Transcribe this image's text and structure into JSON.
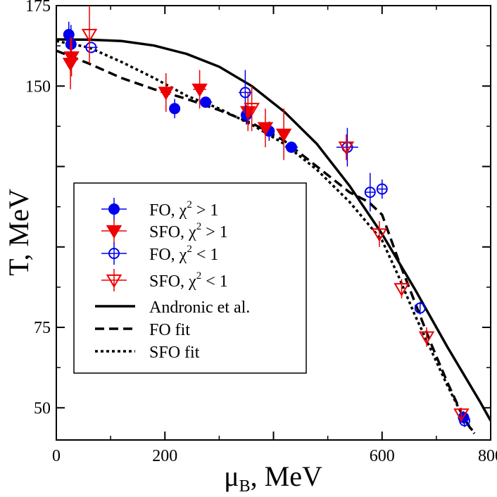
{
  "chart_data": {
    "type": "scatter",
    "xlabel": "μB, MeV",
    "xlabel_main": "μ",
    "xlabel_sub": "B",
    "xlabel_rest": ", MeV",
    "ylabel": "T, MeV",
    "xlim": [
      0,
      800
    ],
    "ylim": [
      40,
      175
    ],
    "x_ticks": [
      0,
      200,
      400,
      600,
      800
    ],
    "x_tick_labels": [
      "0",
      "200",
      "",
      "600",
      "800"
    ],
    "y_ticks": [
      50,
      75,
      100,
      125,
      150,
      175
    ],
    "y_tick_labels": [
      "50",
      "75",
      "",
      "",
      "150",
      "175"
    ],
    "legend_position": "center-left",
    "series": [
      {
        "name": "FO, χ² > 1",
        "legend_main": "FO,   χ",
        "legend_sup": "2",
        "legend_rest": " > 1",
        "marker": "filled-circle",
        "color": "#0000ee",
        "points": [
          {
            "x": 23,
            "y": 166,
            "ex": 0,
            "ey": 4
          },
          {
            "x": 27,
            "y": 163,
            "ex": 0,
            "ey": 6
          },
          {
            "x": 218,
            "y": 143,
            "ex": 10,
            "ey": 3
          },
          {
            "x": 275,
            "y": 145,
            "ex": 12,
            "ey": 0
          },
          {
            "x": 350,
            "y": 141,
            "ex": 0,
            "ey": 3
          },
          {
            "x": 392,
            "y": 136,
            "ex": 0,
            "ey": 3
          },
          {
            "x": 433,
            "y": 131,
            "ex": 12,
            "ey": 0
          },
          {
            "x": 750,
            "y": 47,
            "ex": 0,
            "ey": 2
          }
        ]
      },
      {
        "name": "SFO, χ² > 1",
        "legend_main": "SFO, χ",
        "legend_sup": "2",
        "legend_rest": " > 1",
        "marker": "filled-triangle-down",
        "color": "#ee0000",
        "points": [
          {
            "x": 28,
            "y": 159,
            "ex": 0,
            "ey": 6
          },
          {
            "x": 26,
            "y": 157,
            "ex": 0,
            "ey": 8
          },
          {
            "x": 202,
            "y": 148,
            "ex": 10,
            "ey": 6
          },
          {
            "x": 264,
            "y": 149,
            "ex": 12,
            "ey": 6
          },
          {
            "x": 353,
            "y": 142,
            "ex": 0,
            "ey": 6
          },
          {
            "x": 385,
            "y": 137,
            "ex": 0,
            "ey": 6
          },
          {
            "x": 419,
            "y": 135,
            "ex": 0,
            "ey": 8
          }
        ]
      },
      {
        "name": "FO, χ² < 1",
        "legend_main": "FO,   χ",
        "legend_sup": "2",
        "legend_rest": " < 1",
        "marker": "open-circle",
        "color": "#0000ee",
        "points": [
          {
            "x": 64,
            "y": 162,
            "ex": 12,
            "ey": 0
          },
          {
            "x": 348,
            "y": 148,
            "ex": 12,
            "ey": 7
          },
          {
            "x": 536,
            "y": 131,
            "ex": 20,
            "ey": 6
          },
          {
            "x": 578,
            "y": 117,
            "ex": 8,
            "ey": 6
          },
          {
            "x": 600,
            "y": 118,
            "ex": 8,
            "ey": 3
          },
          {
            "x": 670,
            "y": 81,
            "ex": 0,
            "ey": 2
          },
          {
            "x": 752,
            "y": 46,
            "ex": 0,
            "ey": 2
          }
        ]
      },
      {
        "name": "SFO, χ² < 1",
        "legend_main": "SFO, χ",
        "legend_sup": "2",
        "legend_rest": " < 1",
        "marker": "open-triangle-down",
        "color": "#ee0000",
        "points": [
          {
            "x": 61,
            "y": 166,
            "ex": 0,
            "ey": 9
          },
          {
            "x": 360,
            "y": 143,
            "ex": 0,
            "ey": 7
          },
          {
            "x": 534,
            "y": 131,
            "ex": 0,
            "ey": 4
          },
          {
            "x": 595,
            "y": 104,
            "ex": 0,
            "ey": 4
          },
          {
            "x": 636,
            "y": 87,
            "ex": 0,
            "ey": 3
          },
          {
            "x": 682,
            "y": 72,
            "ex": 0,
            "ey": 3
          },
          {
            "x": 746,
            "y": 48,
            "ex": 0,
            "ey": 2
          }
        ]
      }
    ],
    "curves": [
      {
        "name": "Andronic et al.",
        "style": "solid",
        "color": "#000000",
        "x": [
          0,
          60,
          120,
          180,
          240,
          300,
          360,
          420,
          480,
          540,
          600,
          660,
          720,
          780,
          800
        ],
        "y": [
          164.5,
          164.4,
          164,
          162.6,
          160,
          156,
          150,
          142,
          132,
          119,
          104,
          87,
          69,
          52,
          46
        ]
      },
      {
        "name": "FO fit",
        "style": "dashed",
        "color": "#000000",
        "x": [
          0,
          60,
          120,
          180,
          240,
          300,
          360,
          420,
          480,
          540,
          575,
          600,
          630,
          660,
          690,
          720,
          750,
          765
        ],
        "y": [
          161,
          157,
          152.5,
          149,
          146,
          142.5,
          138.5,
          133,
          125,
          117,
          114,
          110,
          96,
          83,
          70,
          58,
          47,
          43
        ]
      },
      {
        "name": "SFO fit",
        "style": "dotted",
        "color": "#000000",
        "x": [
          0,
          60,
          120,
          180,
          240,
          300,
          360,
          420,
          480,
          540,
          570,
          600,
          630,
          660,
          690,
          720,
          750,
          770
        ],
        "y": [
          164,
          162,
          157.5,
          152.5,
          147,
          143,
          138,
          132,
          124,
          114,
          108,
          102,
          91,
          79,
          68,
          57,
          47,
          42
        ]
      }
    ],
    "legend_curve_labels": [
      "Andronic et al.",
      "FO fit",
      "SFO fit"
    ]
  }
}
